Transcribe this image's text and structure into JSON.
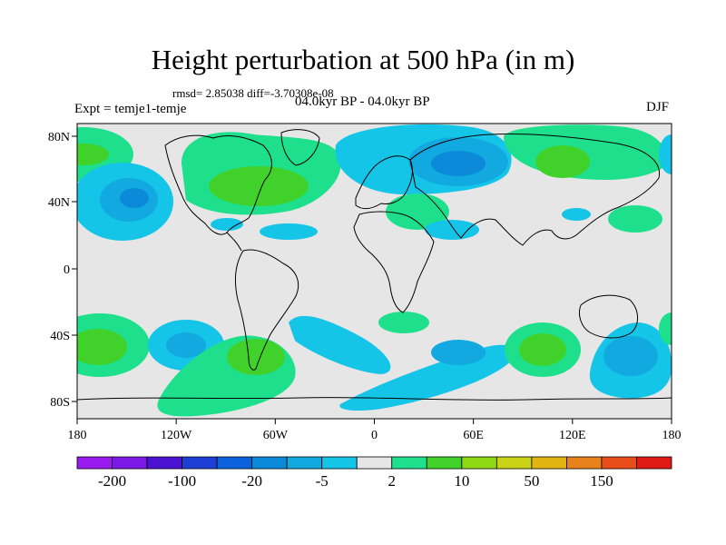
{
  "title": "Height perturbation at 500 hPa (in m)",
  "stats": {
    "rmsd_label": "rmsd=",
    "rmsd_value": "2.85038",
    "diff_label": "diff=",
    "diff_value": "-3.70308e-08"
  },
  "experiment": "Expt = temje1-temje",
  "period": "04.0kyr BP - 04.0kyr BP",
  "season": "DJF",
  "map": {
    "lon_ticks": [
      "180",
      "120W",
      "60W",
      "0",
      "60E",
      "120E",
      "180"
    ],
    "lat_ticks": [
      "80N",
      "40N",
      "0",
      "40S",
      "80S"
    ]
  },
  "colorbar": {
    "colors": [
      "#9a1bf0",
      "#7b1ae6",
      "#4b12d2",
      "#1e3fd6",
      "#0c61dc",
      "#0a8ad8",
      "#12a8e0",
      "#15c5e8",
      "#e6e6e6",
      "#1ee08c",
      "#40d22a",
      "#8ed814",
      "#c9d214",
      "#e1b412",
      "#e8821a",
      "#e84c18",
      "#e01a14"
    ],
    "labels": [
      "-200",
      "-100",
      "-20",
      "-5",
      "2",
      "10",
      "50",
      "150"
    ]
  }
}
